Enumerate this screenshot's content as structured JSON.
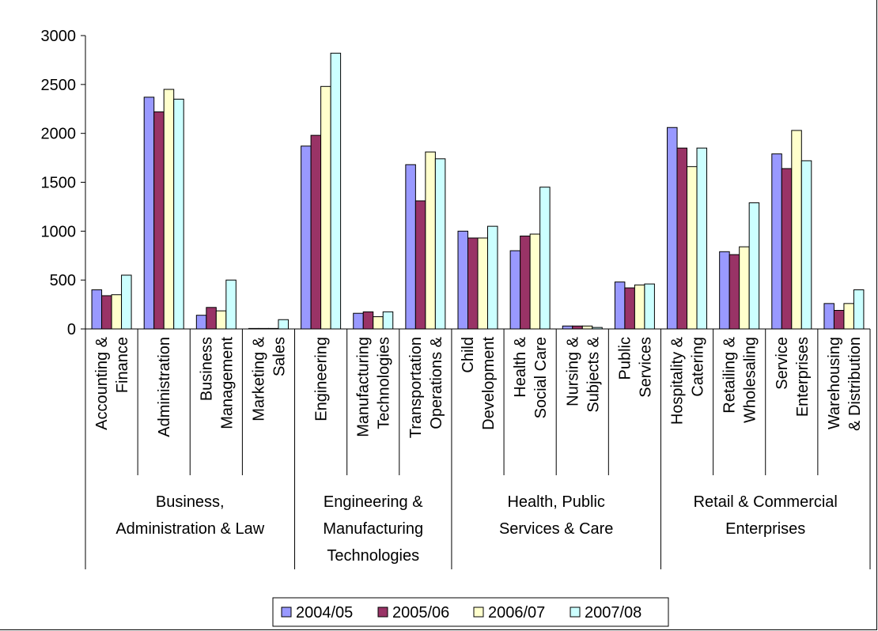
{
  "chart_data": {
    "type": "bar",
    "title": "",
    "xlabel": "",
    "ylabel": "",
    "ylim": [
      0,
      3000
    ],
    "yticks": [
      0,
      500,
      1000,
      1500,
      2000,
      2500,
      3000
    ],
    "grid": false,
    "legend_position": "bottom",
    "categories": [
      [
        "Accounting &",
        "Finance"
      ],
      [
        "Administration"
      ],
      [
        "Business",
        "Management"
      ],
      [
        "Marketing &",
        "Sales"
      ],
      [
        "Engineering"
      ],
      [
        "Manufacturing",
        "Technologies"
      ],
      [
        "Transportation",
        "Operations &"
      ],
      [
        "Child",
        "Development"
      ],
      [
        "Health &",
        "Social Care"
      ],
      [
        "Nursing &",
        "Subjects &"
      ],
      [
        "Public",
        "Services"
      ],
      [
        "Hospitality &",
        "Catering"
      ],
      [
        "Retailing &",
        "Wholesaling"
      ],
      [
        "Service",
        "Enterprises"
      ],
      [
        "Warehousing",
        "& Distribution"
      ]
    ],
    "groups": [
      {
        "lines": [
          "Business,",
          "Administration & Law"
        ],
        "span": 4
      },
      {
        "lines": [
          "Engineering &",
          "Manufacturing",
          "Technologies"
        ],
        "span": 3
      },
      {
        "lines": [
          "Health, Public",
          "Services & Care"
        ],
        "span": 4
      },
      {
        "lines": [
          "Retail & Commercial",
          "Enterprises"
        ],
        "span": 4
      }
    ],
    "series": [
      {
        "name": "2004/05",
        "color": "#9999FF",
        "values": [
          400,
          2370,
          140,
          5,
          1870,
          160,
          1680,
          1000,
          800,
          30,
          480,
          2060,
          790,
          1790,
          260
        ]
      },
      {
        "name": "2005/06",
        "color": "#993366",
        "values": [
          340,
          2220,
          220,
          5,
          1980,
          175,
          1310,
          930,
          950,
          30,
          420,
          1850,
          760,
          1640,
          190
        ]
      },
      {
        "name": "2006/07",
        "color": "#FFFFCC",
        "values": [
          350,
          2450,
          185,
          5,
          2480,
          125,
          1810,
          930,
          970,
          30,
          450,
          1660,
          840,
          2030,
          260
        ]
      },
      {
        "name": "2007/08",
        "color": "#CCFFFF",
        "values": [
          550,
          2350,
          500,
          95,
          2820,
          175,
          1740,
          1050,
          1450,
          15,
          460,
          1850,
          1290,
          1720,
          400
        ]
      }
    ]
  }
}
